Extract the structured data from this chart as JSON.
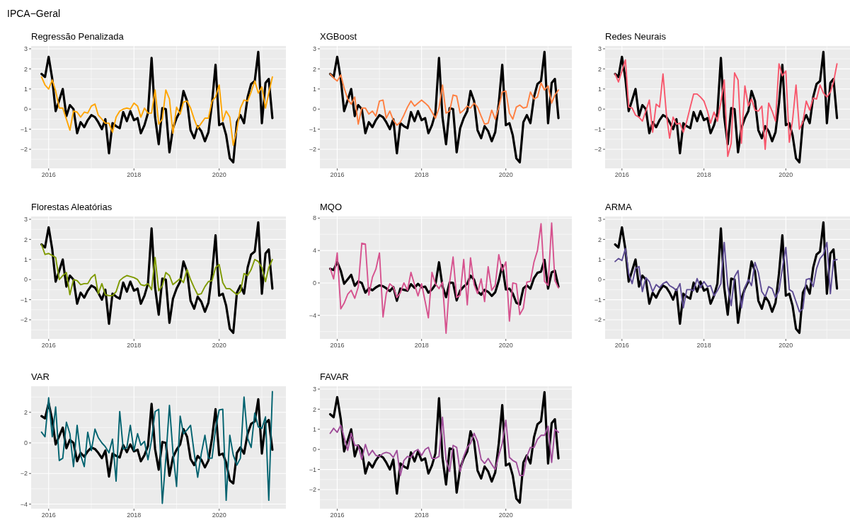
{
  "chart_data": [
    {
      "type": "line",
      "title": "Regressão Penalizada",
      "annotations": [
        "IPCA−Geral"
      ],
      "x": [
        "2015-11",
        "2015-12",
        "2016-01",
        "2016-02",
        "2016-03",
        "2016-04",
        "2016-05",
        "2016-06",
        "2016-07",
        "2016-08",
        "2016-09",
        "2016-10",
        "2016-11",
        "2016-12",
        "2017-01",
        "2017-02",
        "2017-03",
        "2017-04",
        "2017-05",
        "2017-06",
        "2017-07",
        "2017-08",
        "2017-09",
        "2017-10",
        "2017-11",
        "2017-12",
        "2018-01",
        "2018-02",
        "2018-03",
        "2018-04",
        "2018-05",
        "2018-06",
        "2018-07",
        "2018-08",
        "2018-09",
        "2018-10",
        "2018-11",
        "2018-12",
        "2019-01",
        "2019-02",
        "2019-03",
        "2019-04",
        "2019-05",
        "2019-06",
        "2019-07",
        "2019-08",
        "2019-09",
        "2019-10",
        "2019-11",
        "2019-12",
        "2020-01",
        "2020-02",
        "2020-03",
        "2020-04",
        "2020-05",
        "2020-06",
        "2020-07",
        "2020-08",
        "2020-09",
        "2020-10",
        "2020-11",
        "2020-12",
        "2021-01",
        "2021-02",
        "2021-03",
        "2021-04"
      ],
      "xlim": [
        "2015-08-04",
        "2021-07-26"
      ],
      "xticks": [
        "2016",
        "2018",
        "2020"
      ],
      "ylim": [
        -2.95,
        3.14
      ],
      "yticks": [
        -2,
        -1,
        0,
        1,
        2,
        3
      ],
      "grid": true,
      "series": [
        {
          "color": "#000000",
          "values": [
            1.75,
            1.6,
            2.6,
            1.5,
            -0.1,
            0.45,
            1.0,
            -0.35,
            0.2,
            0.0,
            -1.2,
            -0.65,
            -0.9,
            -0.55,
            -0.3,
            -0.4,
            -0.65,
            -1.0,
            -0.5,
            -2.2,
            -0.7,
            -0.85,
            -0.95,
            -0.15,
            -0.6,
            -0.1,
            -0.55,
            -0.45,
            -1.2,
            -0.8,
            -0.2,
            2.55,
            -0.4,
            -1.75,
            0.05,
            0.0,
            -2.15,
            -0.95,
            -0.45,
            -0.1,
            0.9,
            0.4,
            -1.05,
            -1.45,
            -0.85,
            -1.1,
            -1.6,
            -1.15,
            0.3,
            2.2,
            -0.8,
            -0.7,
            -1.3,
            -2.45,
            -2.65,
            -0.65,
            -0.3,
            -0.7,
            0.6,
            1.25,
            1.4,
            2.85,
            -0.7,
            1.3,
            1.5,
            -0.45
          ]
        },
        {
          "color": "#ffa500",
          "values": [
            1.6,
            1.2,
            1.0,
            1.45,
            0.9,
            0.05,
            0.05,
            -0.5,
            -1.05,
            -0.1,
            -0.15,
            -0.4,
            -0.15,
            -0.2,
            0.15,
            0.25,
            -0.3,
            -0.5,
            -0.7,
            -0.7,
            -1.15,
            -0.4,
            -0.1,
            0.0,
            0.05,
            0.0,
            0.3,
            0.15,
            -0.4,
            0.05,
            -0.2,
            -0.2,
            0.95,
            -0.75,
            -0.5,
            0.95,
            0.5,
            -1.2,
            0.1,
            -0.25,
            0.35,
            0.4,
            0.05,
            -0.5,
            -0.95,
            -0.7,
            -0.45,
            -0.45,
            0.4,
            0.6,
            1.2,
            -0.6,
            -0.1,
            -0.4,
            -1.8,
            -1.0,
            0.05,
            0.45,
            0.4,
            0.85,
            1.4,
            0.8,
            1.1,
            0.05,
            0.8,
            1.6
          ]
        }
      ]
    },
    {
      "type": "line",
      "title": "XGBoost",
      "x": [
        "2015-11",
        "2015-12",
        "2016-01",
        "2016-02",
        "2016-03",
        "2016-04",
        "2016-05",
        "2016-06",
        "2016-07",
        "2016-08",
        "2016-09",
        "2016-10",
        "2016-11",
        "2016-12",
        "2017-01",
        "2017-02",
        "2017-03",
        "2017-04",
        "2017-05",
        "2017-06",
        "2017-07",
        "2017-08",
        "2017-09",
        "2017-10",
        "2017-11",
        "2017-12",
        "2018-01",
        "2018-02",
        "2018-03",
        "2018-04",
        "2018-05",
        "2018-06",
        "2018-07",
        "2018-08",
        "2018-09",
        "2018-10",
        "2018-11",
        "2018-12",
        "2019-01",
        "2019-02",
        "2019-03",
        "2019-04",
        "2019-05",
        "2019-06",
        "2019-07",
        "2019-08",
        "2019-09",
        "2019-10",
        "2019-11",
        "2019-12",
        "2020-01",
        "2020-02",
        "2020-03",
        "2020-04",
        "2020-05",
        "2020-06",
        "2020-07",
        "2020-08",
        "2020-09",
        "2020-10",
        "2020-11",
        "2020-12",
        "2021-01",
        "2021-02",
        "2021-03",
        "2021-04"
      ],
      "xlim": [
        "2015-08-04",
        "2021-07-26"
      ],
      "xticks": [
        "2016",
        "2018",
        "2020"
      ],
      "ylim": [
        -2.95,
        3.14
      ],
      "yticks": [
        -2,
        -1,
        0,
        1,
        2,
        3
      ],
      "grid": true,
      "series": [
        {
          "color": "#000000",
          "values": [
            1.75,
            1.6,
            2.6,
            1.5,
            -0.1,
            0.45,
            1.0,
            -0.35,
            0.2,
            0.0,
            -1.2,
            -0.65,
            -0.9,
            -0.55,
            -0.3,
            -0.4,
            -0.65,
            -1.0,
            -0.5,
            -2.2,
            -0.7,
            -0.85,
            -0.95,
            -0.15,
            -0.6,
            -0.1,
            -0.55,
            -0.45,
            -1.2,
            -0.8,
            -0.2,
            2.55,
            -0.4,
            -1.75,
            0.05,
            0.0,
            -2.15,
            -0.95,
            -0.45,
            -0.1,
            0.9,
            0.4,
            -1.05,
            -1.45,
            -0.85,
            -1.1,
            -1.6,
            -1.15,
            0.3,
            2.2,
            -0.8,
            -0.7,
            -1.3,
            -2.45,
            -2.65,
            -0.65,
            -0.3,
            -0.7,
            0.6,
            1.25,
            1.4,
            2.85,
            -0.7,
            1.3,
            1.5,
            -0.45
          ]
        },
        {
          "color": "#ff7f40",
          "values": [
            1.75,
            1.55,
            1.4,
            1.7,
            1.05,
            0.5,
            0.25,
            0.6,
            -0.75,
            0.05,
            0.05,
            -0.25,
            -0.1,
            -0.35,
            0.4,
            0.45,
            -0.45,
            -0.1,
            -0.55,
            -0.8,
            -0.65,
            -0.3,
            0.1,
            0.4,
            0.15,
            0.3,
            0.45,
            0.3,
            0.15,
            -0.15,
            -0.45,
            0.05,
            1.2,
            -0.2,
            -0.1,
            0.7,
            0.65,
            -0.2,
            -0.05,
            0.15,
            0.05,
            0.3,
            0.1,
            -0.35,
            -0.75,
            -0.7,
            -0.05,
            -0.5,
            0.1,
            0.85,
            0.9,
            -0.2,
            -0.5,
            0.1,
            0.2,
            0.05,
            0.1,
            0.85,
            0.5,
            0.6,
            1.3,
            0.95,
            1.15,
            0.3,
            0.7,
            0.95
          ]
        }
      ]
    },
    {
      "type": "line",
      "title": "Redes Neurais",
      "x": [
        "2015-11",
        "2015-12",
        "2016-01",
        "2016-02",
        "2016-03",
        "2016-04",
        "2016-05",
        "2016-06",
        "2016-07",
        "2016-08",
        "2016-09",
        "2016-10",
        "2016-11",
        "2016-12",
        "2017-01",
        "2017-02",
        "2017-03",
        "2017-04",
        "2017-05",
        "2017-06",
        "2017-07",
        "2017-08",
        "2017-09",
        "2017-10",
        "2017-11",
        "2017-12",
        "2018-01",
        "2018-02",
        "2018-03",
        "2018-04",
        "2018-05",
        "2018-06",
        "2018-07",
        "2018-08",
        "2018-09",
        "2018-10",
        "2018-11",
        "2018-12",
        "2019-01",
        "2019-02",
        "2019-03",
        "2019-04",
        "2019-05",
        "2019-06",
        "2019-07",
        "2019-08",
        "2019-09",
        "2019-10",
        "2019-11",
        "2019-12",
        "2020-01",
        "2020-02",
        "2020-03",
        "2020-04",
        "2020-05",
        "2020-06",
        "2020-07",
        "2020-08",
        "2020-09",
        "2020-10",
        "2020-11",
        "2020-12",
        "2021-01",
        "2021-02",
        "2021-03",
        "2021-04"
      ],
      "xlim": [
        "2015-08-04",
        "2021-07-26"
      ],
      "xticks": [
        "2016",
        "2018",
        "2020"
      ],
      "ylim": [
        -2.95,
        3.14
      ],
      "yticks": [
        -2,
        -1,
        0,
        1,
        2,
        3
      ],
      "grid": true,
      "series": [
        {
          "color": "#000000",
          "values": [
            1.75,
            1.6,
            2.6,
            1.5,
            -0.1,
            0.45,
            1.0,
            -0.35,
            0.2,
            0.0,
            -1.2,
            -0.65,
            -0.9,
            -0.55,
            -0.3,
            -0.4,
            -0.65,
            -1.0,
            -0.5,
            -2.2,
            -0.7,
            -0.85,
            -0.95,
            -0.15,
            -0.6,
            -0.1,
            -0.55,
            -0.45,
            -1.2,
            -0.8,
            -0.2,
            2.55,
            -0.4,
            -1.75,
            0.05,
            0.0,
            -2.15,
            -0.95,
            -0.45,
            -0.1,
            0.9,
            0.4,
            -1.05,
            -1.45,
            -0.85,
            -1.1,
            -1.6,
            -1.15,
            0.3,
            2.2,
            -0.8,
            -0.7,
            -1.3,
            -2.45,
            -2.65,
            -0.65,
            -0.3,
            -0.7,
            0.6,
            1.25,
            1.4,
            2.85,
            -0.7,
            1.3,
            1.5,
            -0.45
          ]
        },
        {
          "color": "#f8566b",
          "values": [
            1.75,
            1.35,
            1.9,
            2.45,
            0.1,
            0.05,
            -0.3,
            -0.4,
            -0.6,
            -0.1,
            0.45,
            -1.15,
            0.25,
            0.1,
            1.75,
            -0.3,
            -1.45,
            -0.4,
            -0.75,
            -0.7,
            -1.15,
            -0.6,
            0.1,
            0.75,
            0.75,
            0.6,
            0.4,
            -0.1,
            -0.7,
            -0.15,
            -0.6,
            0.35,
            1.45,
            -2.35,
            -1.7,
            1.8,
            1.45,
            -1.7,
            1.15,
            0.15,
            0.5,
            -0.05,
            -0.1,
            0.15,
            -2.0,
            0.3,
            -0.1,
            -0.6,
            2.25,
            1.65,
            1.9,
            -1.65,
            -0.55,
            1.2,
            -1.0,
            -0.65,
            0.4,
            -0.05,
            0.55,
            0.5,
            1.2,
            0.8,
            0.6,
            0.85,
            1.35,
            2.25
          ]
        }
      ]
    },
    {
      "type": "line",
      "title": "Florestas Aleatórias",
      "x": [
        "2015-11",
        "2015-12",
        "2016-01",
        "2016-02",
        "2016-03",
        "2016-04",
        "2016-05",
        "2016-06",
        "2016-07",
        "2016-08",
        "2016-09",
        "2016-10",
        "2016-11",
        "2016-12",
        "2017-01",
        "2017-02",
        "2017-03",
        "2017-04",
        "2017-05",
        "2017-06",
        "2017-07",
        "2017-08",
        "2017-09",
        "2017-10",
        "2017-11",
        "2017-12",
        "2018-01",
        "2018-02",
        "2018-03",
        "2018-04",
        "2018-05",
        "2018-06",
        "2018-07",
        "2018-08",
        "2018-09",
        "2018-10",
        "2018-11",
        "2018-12",
        "2019-01",
        "2019-02",
        "2019-03",
        "2019-04",
        "2019-05",
        "2019-06",
        "2019-07",
        "2019-08",
        "2019-09",
        "2019-10",
        "2019-11",
        "2019-12",
        "2020-01",
        "2020-02",
        "2020-03",
        "2020-04",
        "2020-05",
        "2020-06",
        "2020-07",
        "2020-08",
        "2020-09",
        "2020-10",
        "2020-11",
        "2020-12",
        "2021-01",
        "2021-02",
        "2021-03",
        "2021-04"
      ],
      "xlim": [
        "2015-08-04",
        "2021-07-26"
      ],
      "xticks": [
        "2016",
        "2018",
        "2020"
      ],
      "ylim": [
        -2.95,
        3.14
      ],
      "yticks": [
        -2,
        -1,
        0,
        1,
        2,
        3
      ],
      "grid": true,
      "series": [
        {
          "color": "#000000",
          "values": [
            1.75,
            1.6,
            2.6,
            1.5,
            -0.1,
            0.45,
            1.0,
            -0.35,
            0.2,
            0.0,
            -1.2,
            -0.65,
            -0.9,
            -0.55,
            -0.3,
            -0.4,
            -0.65,
            -1.0,
            -0.5,
            -2.2,
            -0.7,
            -0.85,
            -0.95,
            -0.15,
            -0.6,
            -0.1,
            -0.55,
            -0.45,
            -1.2,
            -0.8,
            -0.2,
            2.55,
            -0.4,
            -1.75,
            0.05,
            0.0,
            -2.15,
            -0.95,
            -0.45,
            -0.1,
            0.9,
            0.4,
            -1.05,
            -1.45,
            -0.85,
            -1.1,
            -1.6,
            -1.15,
            0.3,
            2.2,
            -0.8,
            -0.7,
            -1.3,
            -2.45,
            -2.65,
            -0.65,
            -0.3,
            -0.7,
            0.6,
            1.25,
            1.4,
            2.85,
            -0.7,
            1.3,
            1.5,
            -0.45
          ]
        },
        {
          "color": "#7f9a00",
          "values": [
            1.75,
            1.25,
            1.3,
            1.2,
            1.1,
            0.0,
            0.2,
            0.35,
            -0.75,
            0.0,
            -0.05,
            -0.25,
            -0.2,
            -0.2,
            0.1,
            0.25,
            -0.7,
            -0.2,
            -0.75,
            -0.8,
            -0.8,
            -0.6,
            -0.05,
            0.1,
            0.2,
            0.15,
            0.1,
            0.0,
            -0.25,
            -0.3,
            -0.2,
            -0.5,
            1.1,
            -0.55,
            -0.3,
            0.35,
            0.2,
            -0.25,
            -0.1,
            0.05,
            -0.15,
            0.5,
            0.0,
            -0.4,
            -0.75,
            -0.7,
            -0.35,
            -0.1,
            -0.05,
            0.6,
            0.75,
            -0.15,
            -0.45,
            -0.45,
            -0.6,
            -0.75,
            -0.6,
            0.3,
            0.2,
            0.5,
            1.0,
            0.9,
            0.6,
            -0.1,
            0.6,
            1.0
          ]
        }
      ]
    },
    {
      "type": "line",
      "title": "MQO",
      "x": [
        "2015-11",
        "2015-12",
        "2016-01",
        "2016-02",
        "2016-03",
        "2016-04",
        "2016-05",
        "2016-06",
        "2016-07",
        "2016-08",
        "2016-09",
        "2016-10",
        "2016-11",
        "2016-12",
        "2017-01",
        "2017-02",
        "2017-03",
        "2017-04",
        "2017-05",
        "2017-06",
        "2017-07",
        "2017-08",
        "2017-09",
        "2017-10",
        "2017-11",
        "2017-12",
        "2018-01",
        "2018-02",
        "2018-03",
        "2018-04",
        "2018-05",
        "2018-06",
        "2018-07",
        "2018-08",
        "2018-09",
        "2018-10",
        "2018-11",
        "2018-12",
        "2019-01",
        "2019-02",
        "2019-03",
        "2019-04",
        "2019-05",
        "2019-06",
        "2019-07",
        "2019-08",
        "2019-09",
        "2019-10",
        "2019-11",
        "2019-12",
        "2020-01",
        "2020-02",
        "2020-03",
        "2020-04",
        "2020-05",
        "2020-06",
        "2020-07",
        "2020-08",
        "2020-09",
        "2020-10",
        "2020-11",
        "2020-12",
        "2021-01",
        "2021-02",
        "2021-03",
        "2021-04"
      ],
      "xlim": [
        "2015-08-04",
        "2021-07-26"
      ],
      "xticks": [
        "2016",
        "2018",
        "2020"
      ],
      "ylim": [
        -6.9,
        8.2
      ],
      "yticks": [
        -4,
        0,
        4,
        8
      ],
      "grid": true,
      "series": [
        {
          "color": "#000000",
          "values": [
            1.75,
            1.6,
            2.6,
            1.5,
            -0.1,
            0.45,
            1.0,
            -0.35,
            0.2,
            0.0,
            -1.2,
            -0.65,
            -0.9,
            -0.55,
            -0.3,
            -0.4,
            -0.65,
            -1.0,
            -0.5,
            -2.2,
            -0.7,
            -0.85,
            -0.95,
            -0.15,
            -0.6,
            -0.1,
            -0.55,
            -0.45,
            -1.2,
            -0.8,
            -0.2,
            2.55,
            -0.4,
            -1.75,
            0.05,
            0.0,
            -2.15,
            -0.95,
            -0.45,
            -0.1,
            0.9,
            0.4,
            -1.05,
            -1.45,
            -0.85,
            -1.1,
            -1.6,
            -1.15,
            0.3,
            2.2,
            -0.8,
            -0.7,
            -1.3,
            -2.45,
            -2.65,
            -0.65,
            -0.3,
            -0.7,
            0.6,
            1.25,
            1.4,
            2.85,
            -0.7,
            1.3,
            1.5,
            -0.45
          ]
        },
        {
          "color": "#d6528e",
          "values": [
            1.8,
            0.5,
            3.7,
            -3.2,
            -2.5,
            -1.4,
            -0.9,
            -1.9,
            -0.5,
            4.9,
            4.8,
            -1.5,
            0.7,
            1.7,
            3.7,
            -4.2,
            -1.3,
            -0.1,
            -0.5,
            -1.8,
            -1.2,
            0.0,
            -0.9,
            1.3,
            -0.2,
            -1.6,
            -0.1,
            -2.3,
            -4.3,
            1.3,
            -0.1,
            -0.7,
            0.1,
            -6.2,
            0.1,
            3.2,
            -1.8,
            -1.5,
            2.9,
            -2.7,
            3.1,
            -0.2,
            -1.3,
            0.5,
            -2.3,
            2.0,
            -0.9,
            -0.3,
            3.5,
            1.5,
            2.6,
            -4.7,
            0.0,
            -0.1,
            -3.9,
            -3.1,
            0.1,
            0.2,
            2.6,
            4.0,
            7.3,
            0.2,
            -0.3,
            7.4,
            0.3,
            -0.6
          ]
        }
      ]
    },
    {
      "type": "line",
      "title": "ARMA",
      "x": [
        "2015-11",
        "2015-12",
        "2016-01",
        "2016-02",
        "2016-03",
        "2016-04",
        "2016-05",
        "2016-06",
        "2016-07",
        "2016-08",
        "2016-09",
        "2016-10",
        "2016-11",
        "2016-12",
        "2017-01",
        "2017-02",
        "2017-03",
        "2017-04",
        "2017-05",
        "2017-06",
        "2017-07",
        "2017-08",
        "2017-09",
        "2017-10",
        "2017-11",
        "2017-12",
        "2018-01",
        "2018-02",
        "2018-03",
        "2018-04",
        "2018-05",
        "2018-06",
        "2018-07",
        "2018-08",
        "2018-09",
        "2018-10",
        "2018-11",
        "2018-12",
        "2019-01",
        "2019-02",
        "2019-03",
        "2019-04",
        "2019-05",
        "2019-06",
        "2019-07",
        "2019-08",
        "2019-09",
        "2019-10",
        "2019-11",
        "2019-12",
        "2020-01",
        "2020-02",
        "2020-03",
        "2020-04",
        "2020-05",
        "2020-06",
        "2020-07",
        "2020-08",
        "2020-09",
        "2020-10",
        "2020-11",
        "2020-12",
        "2021-01",
        "2021-02",
        "2021-03",
        "2021-04"
      ],
      "xlim": [
        "2015-08-04",
        "2021-07-26"
      ],
      "xticks": [
        "2016",
        "2018",
        "2020"
      ],
      "ylim": [
        -2.95,
        3.14
      ],
      "yticks": [
        -2,
        -1,
        0,
        1,
        2,
        3
      ],
      "grid": true,
      "series": [
        {
          "color": "#000000",
          "values": [
            1.75,
            1.6,
            2.6,
            1.5,
            -0.1,
            0.45,
            1.0,
            -0.35,
            0.2,
            0.0,
            -1.2,
            -0.65,
            -0.9,
            -0.55,
            -0.3,
            -0.4,
            -0.65,
            -1.0,
            -0.5,
            -2.2,
            -0.7,
            -0.85,
            -0.95,
            -0.15,
            -0.6,
            -0.1,
            -0.55,
            -0.45,
            -1.2,
            -0.8,
            -0.2,
            2.55,
            -0.4,
            -1.75,
            0.05,
            0.0,
            -2.15,
            -0.95,
            -0.45,
            -0.1,
            0.9,
            0.4,
            -1.05,
            -1.45,
            -0.85,
            -1.1,
            -1.6,
            -1.15,
            0.3,
            2.2,
            -0.8,
            -0.7,
            -1.3,
            -2.45,
            -2.65,
            -0.65,
            -0.3,
            -0.7,
            0.6,
            1.25,
            1.4,
            2.85,
            -0.7,
            1.3,
            1.5,
            -0.45
          ]
        },
        {
          "color": "#5e4c94",
          "values": [
            0.9,
            1.05,
            0.95,
            1.55,
            0.3,
            -0.2,
            0.55,
            0.65,
            -0.6,
            0.1,
            -0.1,
            -0.6,
            -0.25,
            -0.4,
            -0.2,
            -0.1,
            -0.3,
            -0.4,
            -0.55,
            -0.2,
            -1.4,
            -0.5,
            -0.5,
            -0.55,
            0.05,
            -0.4,
            -0.1,
            -0.35,
            -0.3,
            -0.8,
            -0.55,
            -0.2,
            1.85,
            -0.3,
            -1.3,
            0.15,
            0.45,
            -1.4,
            -0.4,
            0.0,
            -0.3,
            0.85,
            0.35,
            -0.6,
            -0.85,
            -0.35,
            -0.45,
            -0.9,
            -0.55,
            0.55,
            1.6,
            -0.5,
            -0.6,
            -1.1,
            -1.6,
            -1.45,
            0.0,
            0.05,
            -0.35,
            0.55,
            1.05,
            1.25,
            1.85,
            -0.7,
            0.95,
            1.0
          ]
        }
      ]
    },
    {
      "type": "line",
      "title": "VAR",
      "x": [
        "2015-11",
        "2015-12",
        "2016-01",
        "2016-02",
        "2016-03",
        "2016-04",
        "2016-05",
        "2016-06",
        "2016-07",
        "2016-08",
        "2016-09",
        "2016-10",
        "2016-11",
        "2016-12",
        "2017-01",
        "2017-02",
        "2017-03",
        "2017-04",
        "2017-05",
        "2017-06",
        "2017-07",
        "2017-08",
        "2017-09",
        "2017-10",
        "2017-11",
        "2017-12",
        "2018-01",
        "2018-02",
        "2018-03",
        "2018-04",
        "2018-05",
        "2018-06",
        "2018-07",
        "2018-08",
        "2018-09",
        "2018-10",
        "2018-11",
        "2018-12",
        "2019-01",
        "2019-02",
        "2019-03",
        "2019-04",
        "2019-05",
        "2019-06",
        "2019-07",
        "2019-08",
        "2019-09",
        "2019-10",
        "2019-11",
        "2019-12",
        "2020-01",
        "2020-02",
        "2020-03",
        "2020-04",
        "2020-05",
        "2020-06",
        "2020-07",
        "2020-08",
        "2020-09",
        "2020-10",
        "2020-11",
        "2020-12",
        "2021-01",
        "2021-02",
        "2021-03",
        "2021-04"
      ],
      "xlim": [
        "2015-08-04",
        "2021-07-26"
      ],
      "xticks": [
        "2016",
        "2018",
        "2020"
      ],
      "ylim": [
        -4.3,
        3.7
      ],
      "yticks": [
        -4,
        -2,
        0,
        2
      ],
      "grid": true,
      "series": [
        {
          "color": "#000000",
          "values": [
            1.75,
            1.6,
            2.6,
            1.5,
            -0.1,
            0.45,
            1.0,
            -0.35,
            0.2,
            0.0,
            -1.2,
            -0.65,
            -0.9,
            -0.55,
            -0.3,
            -0.4,
            -0.65,
            -1.0,
            -0.5,
            -2.2,
            -0.7,
            -0.85,
            -0.95,
            -0.15,
            -0.6,
            -0.1,
            -0.55,
            -0.45,
            -1.2,
            -0.8,
            -0.2,
            2.55,
            -0.4,
            -1.75,
            0.05,
            0.0,
            -2.15,
            -0.95,
            -0.45,
            -0.1,
            0.9,
            0.4,
            -1.05,
            -1.45,
            -0.85,
            -1.1,
            -1.6,
            -1.15,
            0.3,
            2.2,
            -0.8,
            -0.7,
            -1.3,
            -2.45,
            -2.65,
            -0.65,
            -0.3,
            -0.7,
            0.6,
            1.25,
            1.4,
            2.85,
            -0.7,
            1.3,
            1.5,
            -0.45
          ]
        },
        {
          "color": "#00626f",
          "values": [
            0.7,
            0.4,
            2.95,
            0.4,
            2.35,
            -1.15,
            -1.0,
            1.35,
            0.6,
            -1.55,
            1.15,
            -0.8,
            -1.55,
            0.7,
            -0.5,
            0.9,
            0.35,
            0.0,
            -0.25,
            -0.65,
            0.25,
            -2.5,
            2.05,
            -0.4,
            -0.3,
            1.15,
            -0.5,
            0.6,
            -0.15,
            0.1,
            -1.1,
            0.2,
            2.05,
            2.2,
            -3.95,
            -1.0,
            2.45,
            -0.6,
            -2.85,
            1.75,
            0.6,
            0.85,
            1.15,
            -0.65,
            -2.25,
            -0.7,
            0.5,
            -1.0,
            -1.0,
            0.9,
            2.15,
            2.2,
            -3.75,
            0.5,
            -0.8,
            -1.45,
            -1.0,
            3.0,
            0.3,
            -0.3,
            1.95,
            1.05,
            0.95,
            1.7,
            -3.75,
            3.35
          ]
        }
      ]
    },
    {
      "type": "line",
      "title": "FAVAR",
      "x": [
        "2015-11",
        "2015-12",
        "2016-01",
        "2016-02",
        "2016-03",
        "2016-04",
        "2016-05",
        "2016-06",
        "2016-07",
        "2016-08",
        "2016-09",
        "2016-10",
        "2016-11",
        "2016-12",
        "2017-01",
        "2017-02",
        "2017-03",
        "2017-04",
        "2017-05",
        "2017-06",
        "2017-07",
        "2017-08",
        "2017-09",
        "2017-10",
        "2017-11",
        "2017-12",
        "2018-01",
        "2018-02",
        "2018-03",
        "2018-04",
        "2018-05",
        "2018-06",
        "2018-07",
        "2018-08",
        "2018-09",
        "2018-10",
        "2018-11",
        "2018-12",
        "2019-01",
        "2019-02",
        "2019-03",
        "2019-04",
        "2019-05",
        "2019-06",
        "2019-07",
        "2019-08",
        "2019-09",
        "2019-10",
        "2019-11",
        "2019-12",
        "2020-01",
        "2020-02",
        "2020-03",
        "2020-04",
        "2020-05",
        "2020-06",
        "2020-07",
        "2020-08",
        "2020-09",
        "2020-10",
        "2020-11",
        "2020-12",
        "2021-01",
        "2021-02",
        "2021-03",
        "2021-04"
      ],
      "xlim": [
        "2015-08-04",
        "2021-07-26"
      ],
      "xticks": [
        "2016",
        "2018",
        "2020"
      ],
      "ylim": [
        -2.95,
        3.14
      ],
      "yticks": [
        -2,
        -1,
        0,
        1,
        2,
        3
      ],
      "grid": true,
      "series": [
        {
          "color": "#000000",
          "values": [
            1.75,
            1.6,
            2.6,
            1.5,
            -0.1,
            0.45,
            1.0,
            -0.35,
            0.2,
            0.0,
            -1.2,
            -0.65,
            -0.9,
            -0.55,
            -0.3,
            -0.4,
            -0.65,
            -1.0,
            -0.5,
            -2.2,
            -0.7,
            -0.85,
            -0.95,
            -0.15,
            -0.6,
            -0.1,
            -0.55,
            -0.45,
            -1.2,
            -0.8,
            -0.2,
            2.55,
            -0.4,
            -1.75,
            0.05,
            0.0,
            -2.15,
            -0.95,
            -0.45,
            -0.1,
            0.9,
            0.4,
            -1.05,
            -1.45,
            -0.85,
            -1.1,
            -1.6,
            -1.15,
            0.3,
            2.2,
            -0.8,
            -0.7,
            -1.3,
            -2.45,
            -2.65,
            -0.65,
            -0.3,
            -0.7,
            0.6,
            1.25,
            1.4,
            2.85,
            -0.7,
            1.3,
            1.5,
            -0.45
          ]
        },
        {
          "color": "#a04e9a",
          "values": [
            0.8,
            1.05,
            0.85,
            1.2,
            0.6,
            -0.05,
            0.8,
            0.2,
            0.2,
            -0.5,
            0.25,
            -0.3,
            -0.05,
            -0.3,
            -0.35,
            -0.2,
            -0.15,
            -0.2,
            -0.4,
            -0.05,
            -1.3,
            -0.55,
            -0.35,
            -0.4,
            -0.1,
            0.0,
            -0.3,
            0.0,
            0.1,
            -0.45,
            -0.45,
            -0.35,
            1.6,
            -0.5,
            -1.1,
            0.2,
            0.1,
            -1.1,
            -0.35,
            0.1,
            0.3,
            0.8,
            0.4,
            -0.5,
            -0.7,
            -0.45,
            -0.75,
            -1.0,
            -0.3,
            0.3,
            1.45,
            -0.4,
            -0.55,
            -0.65,
            -1.3,
            -1.3,
            -0.35,
            0.1,
            0.1,
            0.5,
            0.7,
            0.7,
            1.15,
            -0.65,
            1.0,
            0.85
          ]
        }
      ]
    }
  ]
}
